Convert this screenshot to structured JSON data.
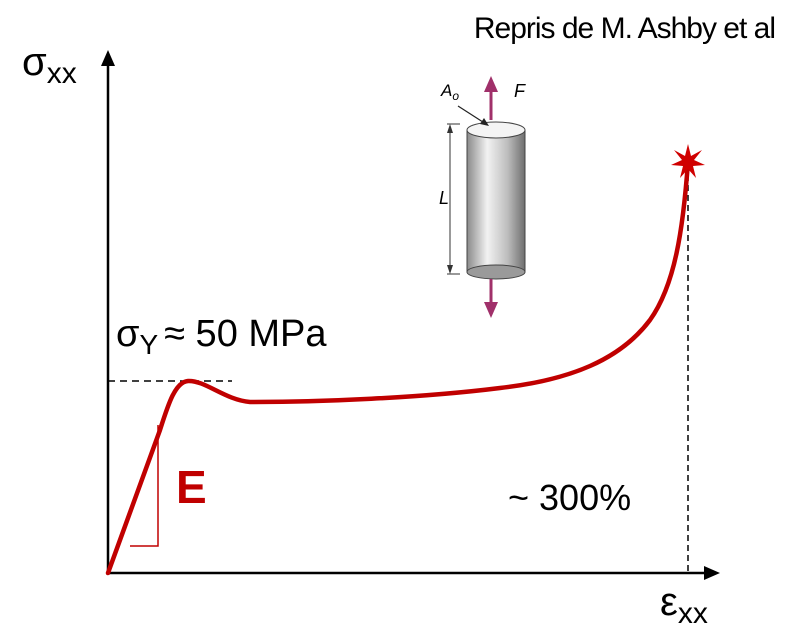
{
  "credit": "Repris de M. Ashby et al",
  "axes": {
    "y_label": {
      "symbol": "σ",
      "subscript": "xx"
    },
    "x_label": {
      "symbol": "ε",
      "subscript": "xx"
    }
  },
  "annotations": {
    "yield": {
      "symbol": "σ",
      "subscript": "Y",
      "text": "≈ 50 MPa"
    },
    "modulus": "E",
    "strain": "~ 300%"
  },
  "specimen": {
    "area": {
      "symbol": "A",
      "subscript": "o"
    },
    "force": "F",
    "length": "L"
  }
}
